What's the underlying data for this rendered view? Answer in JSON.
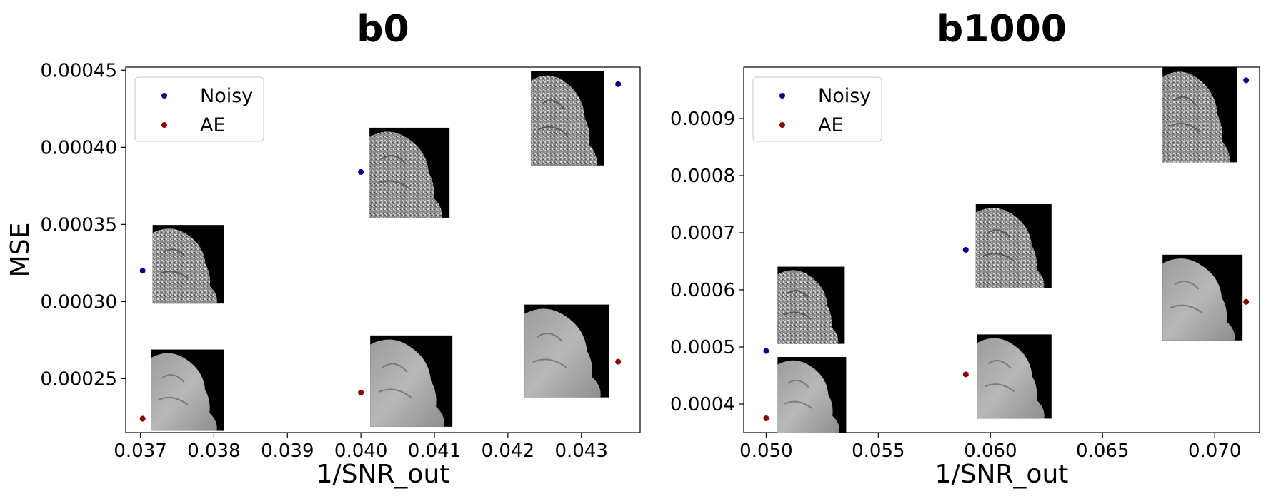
{
  "chart_data": [
    {
      "type": "scatter",
      "title": "b0",
      "xlabel": "1/SNR_out",
      "ylabel": "MSE",
      "xlim": [
        0.0368,
        0.0438
      ],
      "ylim": [
        0.000215,
        0.000452
      ],
      "xticks": [
        "0.037",
        "0.038",
        "0.039",
        "0.040",
        "0.041",
        "0.042",
        "0.043"
      ],
      "yticks": [
        "0.00025",
        "0.00030",
        "0.00035",
        "0.00040",
        "0.00045"
      ],
      "legend_position": "upper-left",
      "grid": false,
      "series": [
        {
          "name": "Noisy",
          "color": "#00008b",
          "points": [
            {
              "x": 0.03703,
              "y": 0.00032
            },
            {
              "x": 0.04,
              "y": 0.000384
            },
            {
              "x": 0.0435,
              "y": 0.000441
            }
          ]
        },
        {
          "name": "AE",
          "color": "#8b0000",
          "points": [
            {
              "x": 0.03703,
              "y": 0.000224
            },
            {
              "x": 0.04,
              "y": 0.000241
            },
            {
              "x": 0.0435,
              "y": 0.000261
            }
          ]
        }
      ],
      "thumbnails": [
        {
          "kind": "noisy",
          "near": {
            "x": 0.03703,
            "y": 0.00032
          }
        },
        {
          "kind": "noisy",
          "near": {
            "x": 0.04,
            "y": 0.000384
          }
        },
        {
          "kind": "noisy",
          "near": {
            "x": 0.0435,
            "y": 0.000441
          }
        },
        {
          "kind": "denoised",
          "near": {
            "x": 0.03703,
            "y": 0.000224
          }
        },
        {
          "kind": "denoised",
          "near": {
            "x": 0.04,
            "y": 0.000241
          }
        },
        {
          "kind": "denoised",
          "near": {
            "x": 0.0435,
            "y": 0.000261
          }
        }
      ]
    },
    {
      "type": "scatter",
      "title": "b1000",
      "xlabel": "1/SNR_out",
      "ylabel": "",
      "xlim": [
        0.049,
        0.072
      ],
      "ylim": [
        0.00035,
        0.00099
      ],
      "xticks": [
        "0.050",
        "0.055",
        "0.060",
        "0.065",
        "0.070"
      ],
      "yticks": [
        "0.0004",
        "0.0005",
        "0.0006",
        "0.0007",
        "0.0008",
        "0.0009"
      ],
      "legend_position": "upper-left",
      "grid": false,
      "series": [
        {
          "name": "Noisy",
          "color": "#00008b",
          "points": [
            {
              "x": 0.05,
              "y": 0.000493
            },
            {
              "x": 0.0589,
              "y": 0.00067
            },
            {
              "x": 0.0714,
              "y": 0.000967
            }
          ]
        },
        {
          "name": "AE",
          "color": "#8b0000",
          "points": [
            {
              "x": 0.05,
              "y": 0.000375
            },
            {
              "x": 0.0589,
              "y": 0.000452
            },
            {
              "x": 0.0714,
              "y": 0.000579
            }
          ]
        }
      ],
      "thumbnails": [
        {
          "kind": "noisy",
          "near": {
            "x": 0.05,
            "y": 0.000493
          }
        },
        {
          "kind": "noisy",
          "near": {
            "x": 0.0589,
            "y": 0.00067
          }
        },
        {
          "kind": "noisy",
          "near": {
            "x": 0.0714,
            "y": 0.000967
          }
        },
        {
          "kind": "denoised",
          "near": {
            "x": 0.05,
            "y": 0.000375
          }
        },
        {
          "kind": "denoised",
          "near": {
            "x": 0.0589,
            "y": 0.000452
          }
        },
        {
          "kind": "denoised",
          "near": {
            "x": 0.0714,
            "y": 0.000579
          }
        }
      ]
    }
  ]
}
